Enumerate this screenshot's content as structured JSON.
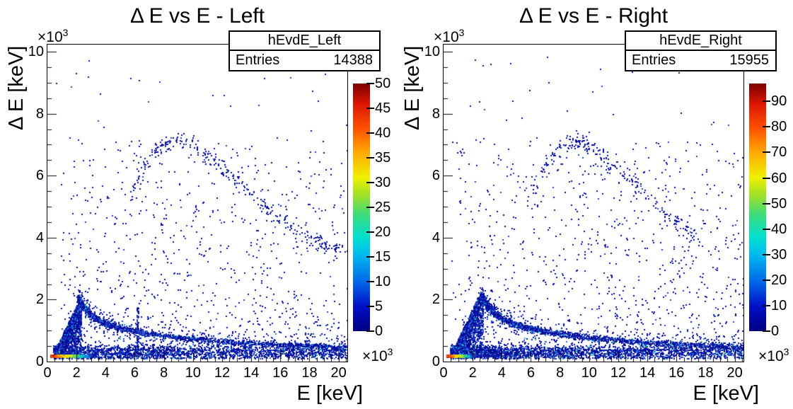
{
  "page": {
    "background": "#ffffff"
  },
  "palette": {
    "gradient_stops": [
      [
        0,
        "#000080"
      ],
      [
        0.1,
        "#0010c8"
      ],
      [
        0.2,
        "#0068e8"
      ],
      [
        0.3,
        "#00b4f0"
      ],
      [
        0.38,
        "#00e0d0"
      ],
      [
        0.47,
        "#3cdc78"
      ],
      [
        0.55,
        "#a0e028"
      ],
      [
        0.62,
        "#f0f000"
      ],
      [
        0.72,
        "#ffaa00"
      ],
      [
        0.82,
        "#ff5000"
      ],
      [
        0.92,
        "#dc1400"
      ],
      [
        1,
        "#7a0000"
      ]
    ],
    "point_colors": {
      "dense": [
        [
          0.6,
          "#000a99"
        ],
        [
          0.26,
          "#1f3bc4"
        ],
        [
          0.1,
          "#2f6be0"
        ],
        [
          0.03,
          "#00b0e0"
        ],
        [
          0.01,
          "#30cc60"
        ]
      ],
      "sparse": [
        [
          0.88,
          "#000a99"
        ],
        [
          0.12,
          "#1f3bc4"
        ]
      ],
      "blue_line": [
        [
          0.65,
          "#0a14a0"
        ],
        [
          0.35,
          "#1f3bc4"
        ]
      ],
      "hot": [
        "#cc2200",
        "#ff5500",
        "#ff9900",
        "#ffd500",
        "#e8e800",
        "#a8e030",
        "#46d26e",
        "#00c8c8",
        "#0096e6",
        "#1e46d2",
        "#0a14a0"
      ]
    }
  },
  "chart_data": [
    {
      "type": "scatter",
      "subtype": "2d-histogram",
      "title": "Δ E vs E - Left",
      "xlabel": "E [keV]",
      "ylabel": "Δ E [keV]",
      "grid": false,
      "xlim": [
        0,
        20600
      ],
      "ylim": [
        0,
        10230
      ],
      "exponent": {
        "base": "×10",
        "power": "3"
      },
      "x_ticks": [
        [
          0,
          "0"
        ],
        [
          2000,
          "2"
        ],
        [
          4000,
          "4"
        ],
        [
          6000,
          "6"
        ],
        [
          8000,
          "8"
        ],
        [
          10000,
          "10"
        ],
        [
          12000,
          "12"
        ],
        [
          14000,
          "14"
        ],
        [
          16000,
          "16"
        ],
        [
          18000,
          "18"
        ],
        [
          20000,
          "20"
        ]
      ],
      "y_ticks": [
        [
          0,
          "0"
        ],
        [
          2000,
          "2"
        ],
        [
          4000,
          "4"
        ],
        [
          6000,
          "6"
        ],
        [
          8000,
          "8"
        ],
        [
          10000,
          "10"
        ]
      ],
      "minor_step": 500,
      "stats": {
        "name": "hEvdE_Left",
        "entries_label": "Entries",
        "entries": "14388"
      },
      "colorbar": {
        "zmin": 0,
        "zmax": 50,
        "ticks": [
          [
            0,
            "0"
          ],
          [
            5,
            "5"
          ],
          [
            10,
            "10"
          ],
          [
            15,
            "15"
          ],
          [
            20,
            "20"
          ],
          [
            25,
            "25"
          ],
          [
            30,
            "30"
          ],
          [
            35,
            "35"
          ],
          [
            40,
            "40"
          ],
          [
            45,
            "45"
          ],
          [
            50,
            "50"
          ]
        ]
      },
      "features": [
        {
          "kind": "band",
          "seed": 11,
          "n": 2400,
          "e0": 400,
          "e1": 20600,
          "xpow": 1.55,
          "ymu": 300,
          "ysig": 115,
          "ymin": 110,
          "ymax": 580,
          "colors": "dense"
        },
        {
          "kind": "box",
          "seed": 12,
          "n": 950,
          "e0": 900,
          "e1": 20600,
          "y0": 380,
          "y1": 7200,
          "ypow": 2.1,
          "colors": "sparse"
        },
        {
          "kind": "box",
          "seed": 13,
          "n": 110,
          "e0": 400,
          "e1": 20600,
          "y0": 300,
          "y1": 9900,
          "ypow": 1,
          "colors": "sparse"
        },
        {
          "kind": "tri",
          "seed": 14,
          "n": 1500,
          "e0": 450,
          "e1": 2300,
          "off": 150,
          "cap": 2050,
          "ybase": 160,
          "bias": 0.5,
          "colors": "dense"
        },
        {
          "kind": "box",
          "seed": 15,
          "n": 65,
          "e0": 6100,
          "e1": 6220,
          "y0": 150,
          "y1": 1800,
          "ypow": 1,
          "colors": "sparse"
        },
        {
          "kind": "curve",
          "seed": 16,
          "n": 2300,
          "tpow": 1.35,
          "ysig": 48,
          "fuzz": 0.18,
          "fsig": 170,
          "xsig": 45,
          "colors": "dense",
          "pts": [
            [
              2100,
              2060
            ],
            [
              2500,
              1760
            ],
            [
              3000,
              1510
            ],
            [
              3700,
              1300
            ],
            [
              4600,
              1150
            ],
            [
              5800,
              1010
            ],
            [
              7200,
              900
            ],
            [
              8800,
              800
            ],
            [
              10500,
              720
            ],
            [
              12500,
              650
            ],
            [
              14500,
              595
            ],
            [
              16500,
              555
            ],
            [
              18500,
              520
            ],
            [
              20600,
              495
            ]
          ]
        },
        {
          "kind": "curve",
          "seed": 17,
          "n": 330,
          "tpow": 1,
          "ysig": 130,
          "fuzz": 0.1,
          "fsig": 300,
          "xsig": 120,
          "colors": "sparse",
          "pts": [
            [
              5700,
              5350
            ],
            [
              6400,
              6150
            ],
            [
              7200,
              6750
            ],
            [
              8100,
              7050
            ],
            [
              9000,
              7150
            ],
            [
              10000,
              7000
            ],
            [
              11000,
              6650
            ],
            [
              12000,
              6250
            ],
            [
              13200,
              5750
            ],
            [
              14400,
              5250
            ],
            [
              15600,
              4750
            ],
            [
              16800,
              4300
            ],
            [
              18000,
              3950
            ],
            [
              19200,
              3750
            ],
            [
              20400,
              3650
            ]
          ]
        },
        {
          "kind": "strip",
          "seed": 18,
          "n": 620,
          "e0": 200,
          "e1": 3150,
          "xpow": 1.25,
          "y": 195,
          "ysig": 40,
          "colors": "hot"
        }
      ]
    },
    {
      "type": "scatter",
      "subtype": "2d-histogram",
      "title": "Δ E vs E - Right",
      "xlabel": "E [keV]",
      "ylabel": "Δ E [keV]",
      "grid": false,
      "xlim": [
        0,
        20600
      ],
      "ylim": [
        0,
        10230
      ],
      "exponent": {
        "base": "×10",
        "power": "3"
      },
      "x_ticks": [
        [
          0,
          "0"
        ],
        [
          2000,
          "2"
        ],
        [
          4000,
          "4"
        ],
        [
          6000,
          "6"
        ],
        [
          8000,
          "8"
        ],
        [
          10000,
          "10"
        ],
        [
          12000,
          "12"
        ],
        [
          14000,
          "14"
        ],
        [
          16000,
          "16"
        ],
        [
          18000,
          "18"
        ],
        [
          20000,
          "20"
        ]
      ],
      "y_ticks": [
        [
          0,
          "0"
        ],
        [
          2000,
          "2"
        ],
        [
          4000,
          "4"
        ],
        [
          6000,
          "6"
        ],
        [
          8000,
          "8"
        ],
        [
          10000,
          "10"
        ]
      ],
      "minor_step": 500,
      "stats": {
        "name": "hEvdE_Right",
        "entries_label": "Entries",
        "entries": "15955"
      },
      "colorbar": {
        "zmin": 0,
        "zmax": 97,
        "ticks": [
          [
            0,
            "0"
          ],
          [
            10,
            "10"
          ],
          [
            20,
            "20"
          ],
          [
            30,
            "30"
          ],
          [
            40,
            "40"
          ],
          [
            50,
            "50"
          ],
          [
            60,
            "60"
          ],
          [
            70,
            "70"
          ],
          [
            80,
            "80"
          ],
          [
            90,
            "90"
          ]
        ]
      },
      "features": [
        {
          "kind": "band",
          "seed": 21,
          "n": 2500,
          "e0": 450,
          "e1": 20600,
          "xpow": 1.5,
          "ymu": 300,
          "ysig": 115,
          "ymin": 110,
          "ymax": 580,
          "colors": "dense"
        },
        {
          "kind": "box",
          "seed": 22,
          "n": 1050,
          "e0": 900,
          "e1": 20600,
          "y0": 380,
          "y1": 7200,
          "ypow": 2.1,
          "colors": "sparse"
        },
        {
          "kind": "box",
          "seed": 23,
          "n": 120,
          "e0": 400,
          "e1": 20600,
          "y0": 300,
          "y1": 9900,
          "ypow": 1,
          "colors": "sparse"
        },
        {
          "kind": "tri",
          "seed": 24,
          "n": 1600,
          "e0": 500,
          "e1": 2700,
          "off": 250,
          "cap": 2100,
          "ybase": 160,
          "bias": 0.47,
          "colors": "dense"
        },
        {
          "kind": "curve",
          "seed": 26,
          "n": 2400,
          "tpow": 1.35,
          "ysig": 48,
          "fuzz": 0.18,
          "fsig": 170,
          "xsig": 45,
          "colors": "dense",
          "pts": [
            [
              2550,
              2120
            ],
            [
              2950,
              1830
            ],
            [
              3450,
              1580
            ],
            [
              4100,
              1380
            ],
            [
              4900,
              1220
            ],
            [
              6000,
              1070
            ],
            [
              7400,
              950
            ],
            [
              9000,
              840
            ],
            [
              10800,
              750
            ],
            [
              12800,
              670
            ],
            [
              15000,
              600
            ],
            [
              17000,
              555
            ],
            [
              18800,
              520
            ],
            [
              20600,
              485
            ]
          ]
        },
        {
          "kind": "curve",
          "seed": 27,
          "n": 250,
          "tpow": 1,
          "ysig": 140,
          "fuzz": 0.1,
          "fsig": 300,
          "xsig": 120,
          "colors": "sparse",
          "pts": [
            [
              6100,
              5500
            ],
            [
              6900,
              6300
            ],
            [
              7700,
              6800
            ],
            [
              8600,
              7050
            ],
            [
              9500,
              7050
            ],
            [
              10400,
              6800
            ],
            [
              11400,
              6400
            ],
            [
              12500,
              5950
            ],
            [
              13700,
              5450
            ],
            [
              15000,
              4900
            ],
            [
              16200,
              4450
            ],
            [
              17300,
              4100
            ]
          ]
        },
        {
          "kind": "strip",
          "seed": 28,
          "n": 300,
          "e0": 2000,
          "e1": 3650,
          "xpow": 1,
          "y": 205,
          "ysig": 28,
          "colors": "blue_line"
        },
        {
          "kind": "strip",
          "seed": 29,
          "n": 520,
          "e0": 200,
          "e1": 2150,
          "xpow": 1.2,
          "y": 195,
          "ysig": 38,
          "colors": "hot"
        }
      ]
    }
  ]
}
